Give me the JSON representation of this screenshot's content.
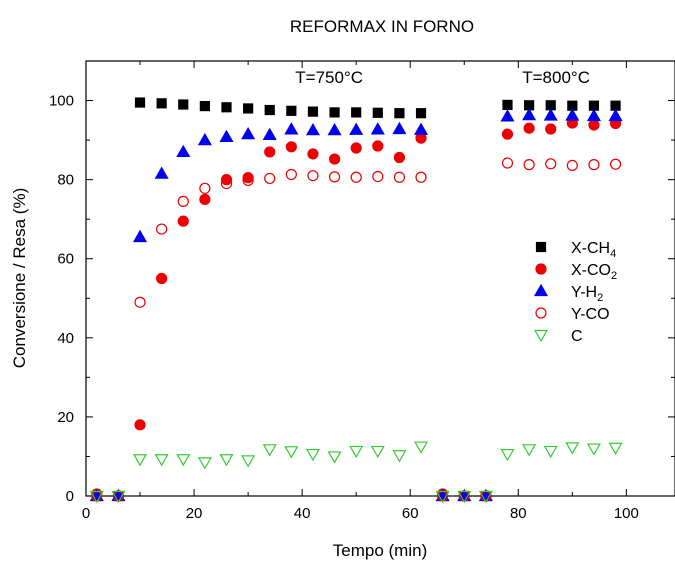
{
  "chart_data": {
    "type": "scatter",
    "title": "REFORMAX IN FORNO",
    "xlabel": "Tempo (min)",
    "ylabel": "Conversione / Resa (%)",
    "xlim": [
      0,
      109
    ],
    "ylim": [
      0,
      110
    ],
    "xticks": [
      0,
      20,
      40,
      60,
      80,
      100
    ],
    "yticks": [
      0,
      20,
      40,
      60,
      80,
      100
    ],
    "annotations": [
      {
        "id": "t750",
        "text": "T=750°C",
        "x": 45,
        "y": 104.5
      },
      {
        "id": "t800",
        "text": "T=800°C",
        "x": 87,
        "y": 104.5
      }
    ],
    "legend_position": "right",
    "series": [
      {
        "name": "X-CH4",
        "base": "X-CH",
        "sub": "4",
        "marker": "square",
        "filled": true,
        "color": "#000000",
        "points": [
          [
            2,
            0
          ],
          [
            6,
            0
          ],
          [
            10,
            99.5
          ],
          [
            14,
            99.3
          ],
          [
            18,
            99
          ],
          [
            22,
            98.6
          ],
          [
            26,
            98.3
          ],
          [
            30,
            98
          ],
          [
            34,
            97.6
          ],
          [
            38,
            97.4
          ],
          [
            42,
            97.2
          ],
          [
            46,
            97
          ],
          [
            50,
            97
          ],
          [
            54,
            96.9
          ],
          [
            58,
            96.8
          ],
          [
            62,
            96.8
          ],
          [
            66,
            0
          ],
          [
            70,
            0
          ],
          [
            74,
            0
          ],
          [
            78,
            98.9
          ],
          [
            82,
            98.8
          ],
          [
            86,
            98.8
          ],
          [
            90,
            98.7
          ],
          [
            94,
            98.7
          ],
          [
            98,
            98.7
          ]
        ]
      },
      {
        "name": "X-CO2",
        "base": "X-CO",
        "sub": "2",
        "marker": "circle",
        "filled": true,
        "color": "#ee0000",
        "points": [
          [
            2,
            0.5
          ],
          [
            6,
            0
          ],
          [
            10,
            18
          ],
          [
            14,
            55
          ],
          [
            18,
            69.5
          ],
          [
            22,
            75
          ],
          [
            26,
            80
          ],
          [
            30,
            80.5
          ],
          [
            34,
            87
          ],
          [
            38,
            88.3
          ],
          [
            42,
            86.5
          ],
          [
            46,
            85.2
          ],
          [
            50,
            88
          ],
          [
            54,
            88.5
          ],
          [
            58,
            85.6
          ],
          [
            62,
            90.5
          ],
          [
            66,
            0.5
          ],
          [
            70,
            0
          ],
          [
            74,
            0
          ],
          [
            78,
            91.5
          ],
          [
            82,
            93
          ],
          [
            86,
            92.8
          ],
          [
            90,
            94.3
          ],
          [
            94,
            93.8
          ],
          [
            98,
            94.2
          ]
        ]
      },
      {
        "name": "Y-H2",
        "base": "Y-H",
        "sub": "2",
        "marker": "triangle-up",
        "filled": true,
        "color": "#0000ee",
        "points": [
          [
            2,
            0
          ],
          [
            6,
            0
          ],
          [
            10,
            65.5
          ],
          [
            14,
            81.5
          ],
          [
            18,
            87
          ],
          [
            22,
            90
          ],
          [
            26,
            90.8
          ],
          [
            30,
            91.5
          ],
          [
            34,
            91.3
          ],
          [
            38,
            92.7
          ],
          [
            42,
            92.5
          ],
          [
            46,
            92.5
          ],
          [
            50,
            92.6
          ],
          [
            54,
            92.7
          ],
          [
            58,
            92.8
          ],
          [
            62,
            92.6
          ],
          [
            66,
            0
          ],
          [
            70,
            0
          ],
          [
            74,
            0
          ],
          [
            78,
            96
          ],
          [
            82,
            96.3
          ],
          [
            86,
            96.2
          ],
          [
            90,
            96.2
          ],
          [
            94,
            96.1
          ],
          [
            98,
            96.1
          ]
        ]
      },
      {
        "name": "Y-CO",
        "base": "Y-CO",
        "sub": "",
        "marker": "circle",
        "filled": false,
        "color": "#ee0000",
        "points": [
          [
            2,
            0
          ],
          [
            6,
            0
          ],
          [
            10,
            49
          ],
          [
            14,
            67.5
          ],
          [
            18,
            74.5
          ],
          [
            22,
            77.8
          ],
          [
            26,
            79
          ],
          [
            30,
            79.8
          ],
          [
            34,
            80.3
          ],
          [
            38,
            81.3
          ],
          [
            42,
            81
          ],
          [
            46,
            80.7
          ],
          [
            50,
            80.6
          ],
          [
            54,
            80.8
          ],
          [
            58,
            80.6
          ],
          [
            62,
            80.6
          ],
          [
            66,
            0
          ],
          [
            70,
            0
          ],
          [
            74,
            0
          ],
          [
            78,
            84.2
          ],
          [
            82,
            83.8
          ],
          [
            86,
            84
          ],
          [
            90,
            83.6
          ],
          [
            94,
            83.8
          ],
          [
            98,
            83.9
          ]
        ]
      },
      {
        "name": "C",
        "base": "C",
        "sub": "",
        "marker": "triangle-down",
        "filled": false,
        "color": "#33cc33",
        "points": [
          [
            2,
            0
          ],
          [
            6,
            0
          ],
          [
            10,
            9.3
          ],
          [
            14,
            9.3
          ],
          [
            18,
            9.3
          ],
          [
            22,
            8.5
          ],
          [
            26,
            9.3
          ],
          [
            30,
            9
          ],
          [
            34,
            11.8
          ],
          [
            38,
            11.3
          ],
          [
            42,
            10.6
          ],
          [
            46,
            10
          ],
          [
            50,
            11.4
          ],
          [
            54,
            11.4
          ],
          [
            58,
            10.3
          ],
          [
            62,
            12.5
          ],
          [
            66,
            0
          ],
          [
            70,
            0
          ],
          [
            74,
            0
          ],
          [
            78,
            10.6
          ],
          [
            82,
            11.8
          ],
          [
            86,
            11.4
          ],
          [
            90,
            12.3
          ],
          [
            94,
            12
          ],
          [
            98,
            12.2
          ]
        ]
      }
    ]
  }
}
